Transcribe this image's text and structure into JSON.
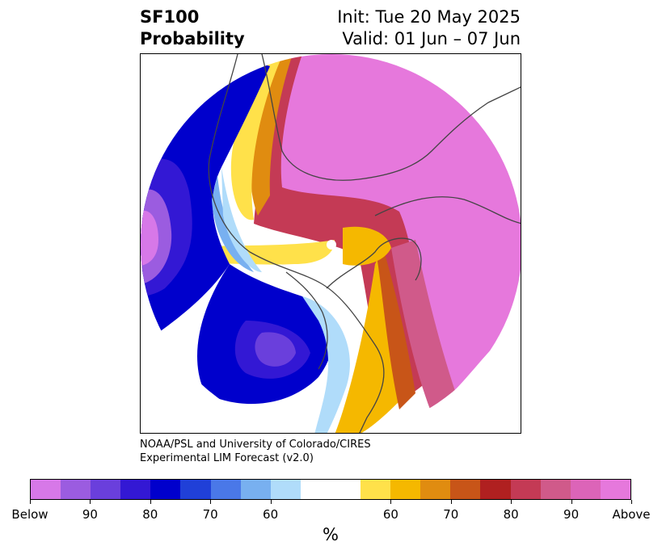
{
  "title": {
    "left_line1": "SF100",
    "left_line2": "Probability",
    "right_line1": "Init: Tue 20 May 2025",
    "right_line2": "Valid: 01 Jun – 07 Jun"
  },
  "credit": {
    "line1": "NOAA/PSL and University of Colorado/CIRES",
    "line2": "Experimental LIM Forecast (v2.0)"
  },
  "colorbar": {
    "unit": "%",
    "colors": [
      "#d778e8",
      "#9b5ce0",
      "#6a3fdc",
      "#3318d4",
      "#0000cc",
      "#2040d8",
      "#4a78e8",
      "#78b0f0",
      "#b0dcfa",
      "#ffffff",
      "#ffffff",
      "#ffe14a",
      "#f5b800",
      "#e08c10",
      "#c85518",
      "#b02020",
      "#c43a55",
      "#d05a8a",
      "#dc64b8",
      "#e678dc"
    ],
    "tick_labels": [
      "Below",
      "90",
      "80",
      "70",
      "60",
      "60",
      "70",
      "80",
      "90",
      "Above"
    ],
    "tick_index": [
      0,
      2,
      4,
      6,
      8,
      12,
      14,
      16,
      18,
      20
    ]
  },
  "map": {
    "projection": "north-polar-stereographic",
    "field": "SF100 probability",
    "features": [
      "blue-anomaly-north-pacific",
      "blue-anomaly-western-north-america",
      "red-anomaly-eurasia",
      "red-anomaly-north-atlantic",
      "yellow-transition-bands"
    ]
  }
}
